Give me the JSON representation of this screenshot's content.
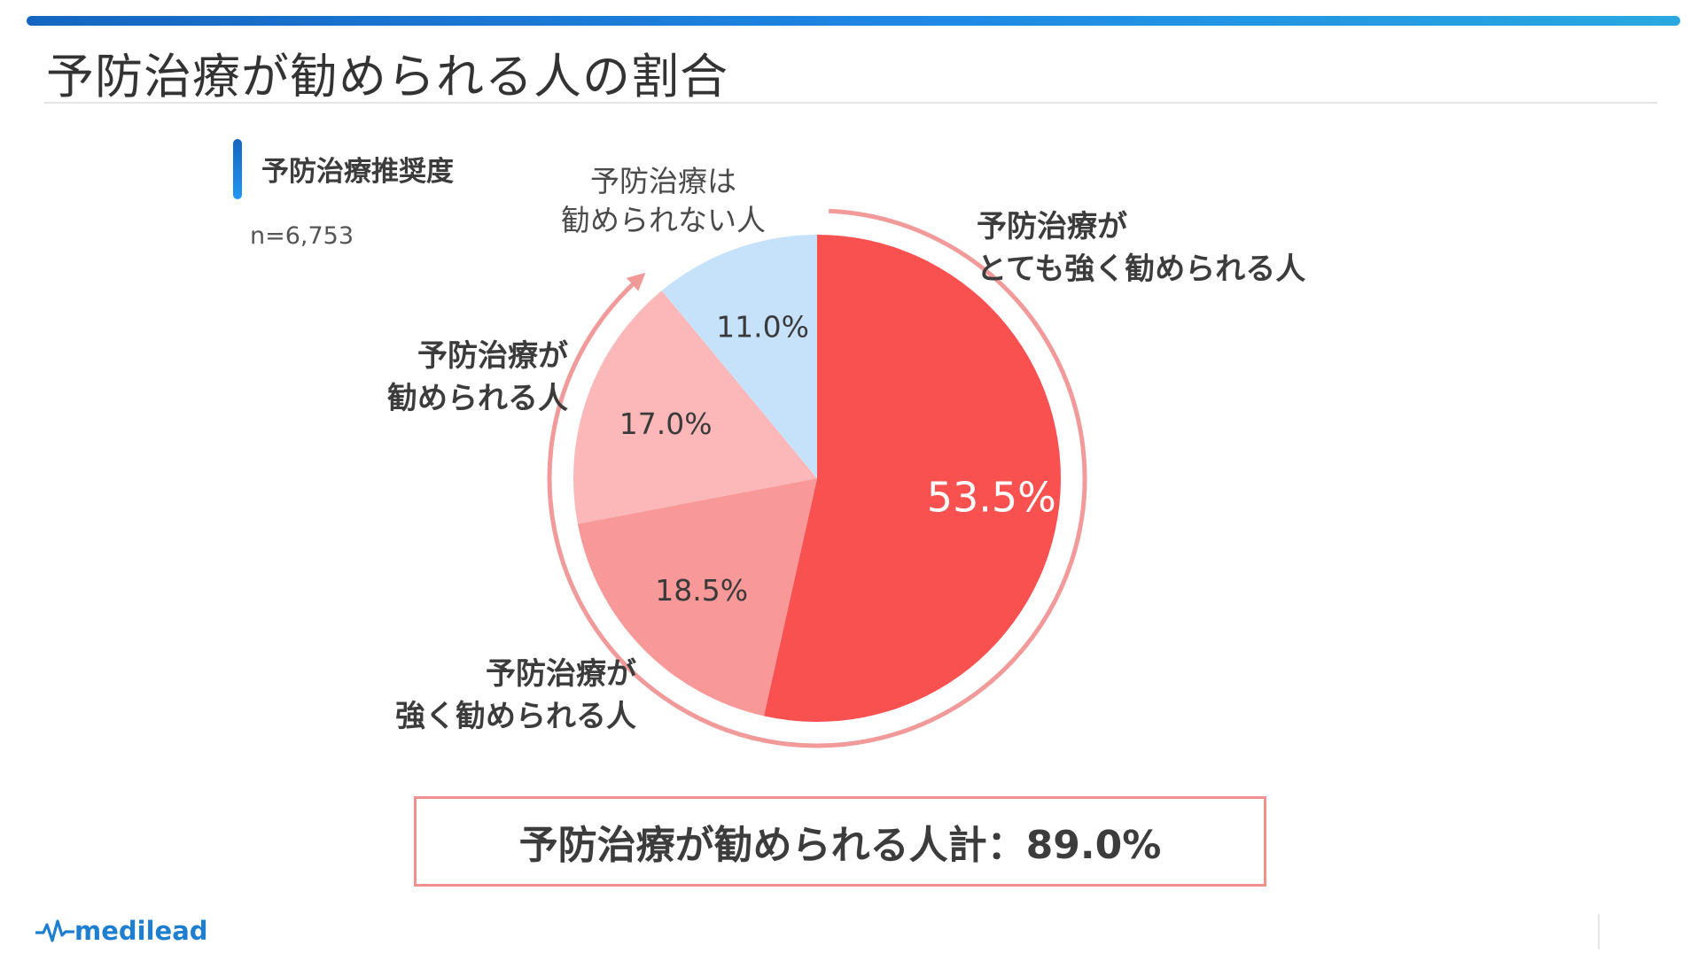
{
  "page": {
    "title": "予防治療が勧められる人の割合",
    "subheading": "予防治療推奨度",
    "sample_size": "n=6,753",
    "summary": "予防治療が勧められる人計：89.0%",
    "logo": "medilead"
  },
  "labels": {
    "very_strong": [
      "予防治療が",
      "とても強く勧められる人"
    ],
    "strong": [
      "予防治療が",
      "強く勧められる人"
    ],
    "recommended": [
      "予防治療が",
      "勧められる人"
    ],
    "not_recommended": [
      "予防治療は",
      "勧められない人"
    ]
  },
  "chart_data": {
    "type": "pie",
    "categories": [
      "予防治療がとても強く勧められる人",
      "予防治療が強く勧められる人",
      "予防治療が勧められる人",
      "予防治療は勧められない人"
    ],
    "values": [
      53.5,
      18.5,
      17.0,
      11.0
    ],
    "value_labels": [
      "53.5%",
      "18.5%",
      "17.0%",
      "11.0%"
    ],
    "colors": [
      "#f95050",
      "#f99898",
      "#fcb8b8",
      "#c6e2fa"
    ],
    "label_colors": [
      "#ffffff",
      "#3a3a3a",
      "#3a3a3a",
      "#3a3a3a"
    ],
    "start": "12 o'clock",
    "direction": "clockwise",
    "bracket_arrow": {
      "spans_categories": [
        0,
        1,
        2
      ],
      "color": "#f29a9a"
    }
  }
}
